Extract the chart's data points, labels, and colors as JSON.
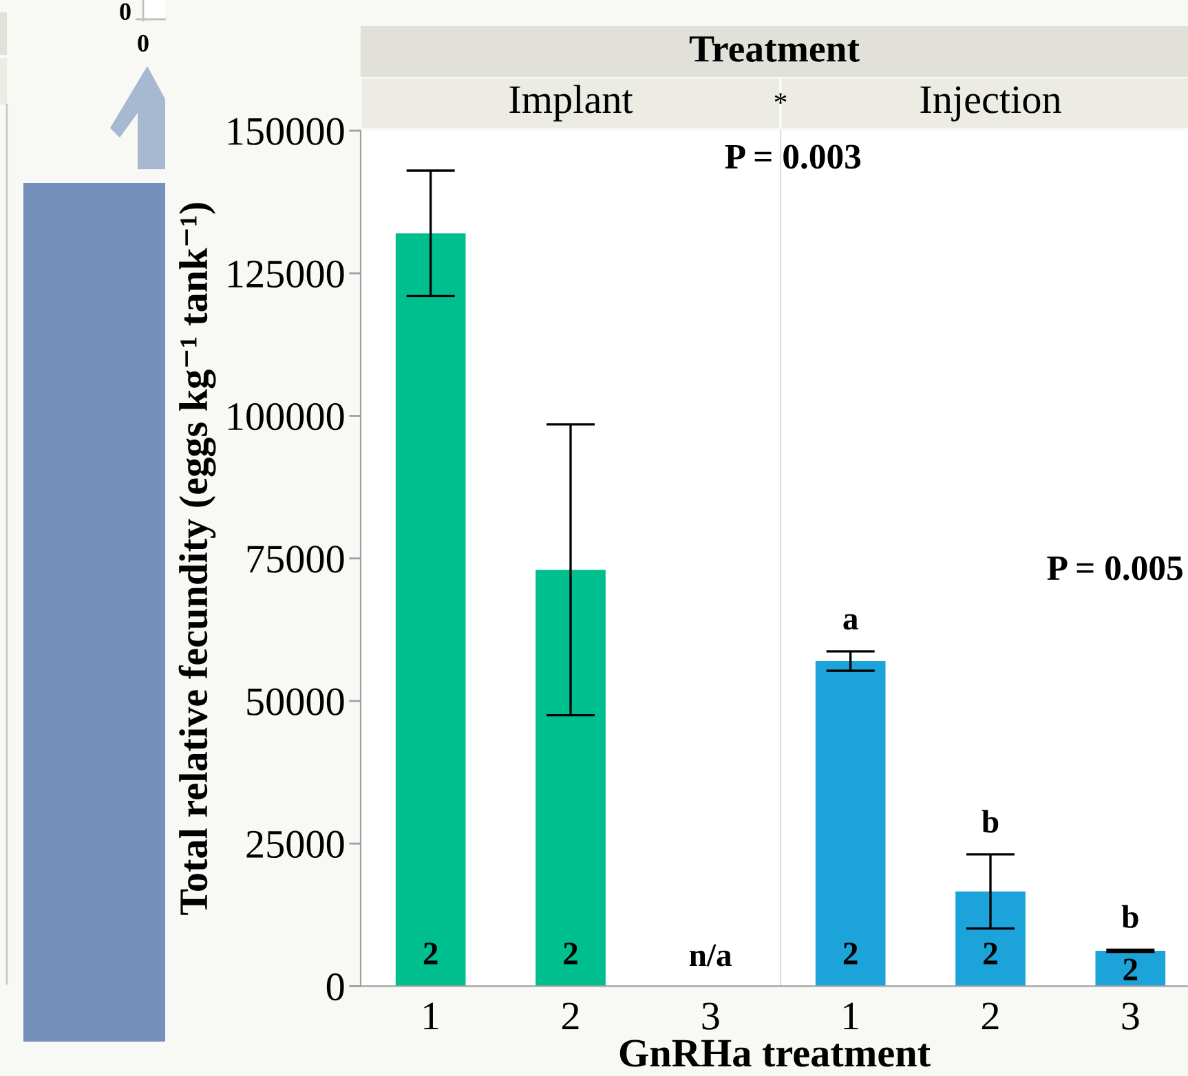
{
  "chart_data": [
    {
      "type": "other",
      "annotations": [
        "0",
        "0"
      ]
    },
    {
      "type": "bar",
      "title": "Treatment",
      "subtitle": "Implant",
      "xlabel": "GnRHa treatment",
      "ylabel": "Total relative fecundity (eggs kg⁻¹ tank⁻¹)",
      "categories": [
        "1",
        "2",
        "3"
      ],
      "values": [
        132000,
        73000,
        null
      ],
      "errors": [
        11000,
        25500,
        null
      ],
      "color": "#00bf8f",
      "ylim": [
        0,
        150000
      ],
      "yticks": [
        0,
        25000,
        50000,
        75000,
        100000,
        125000,
        150000
      ],
      "annotations": [
        "P = 0.003",
        "*",
        "n/a",
        {
          "text": "2",
          "x": "1",
          "y": 0
        },
        {
          "text": "2",
          "x": "2",
          "y": 0
        }
      ]
    },
    {
      "type": "bar",
      "subtitle": "Injection",
      "categories": [
        "1",
        "2",
        "3"
      ],
      "values": [
        57000,
        16600,
        6200
      ],
      "errors": [
        1700,
        6500,
        200
      ],
      "color": "#1ba3da",
      "ylim": [
        0,
        150000
      ],
      "yticks": [
        0,
        25000,
        50000,
        75000,
        100000,
        125000,
        150000
      ],
      "tick_labels": "x",
      "annotations": [
        "P = 0.005",
        {
          "text": "a",
          "x": "1",
          "y": 58700
        },
        {
          "text": "b",
          "x": "2",
          "y": 23100
        },
        {
          "text": "b",
          "x": "3",
          "y": 6400
        },
        {
          "text": "2",
          "x": "1",
          "y": 0
        },
        {
          "text": "2",
          "x": "2",
          "y": 0
        },
        {
          "text": "2",
          "x": "3",
          "y": 0
        }
      ]
    }
  ]
}
